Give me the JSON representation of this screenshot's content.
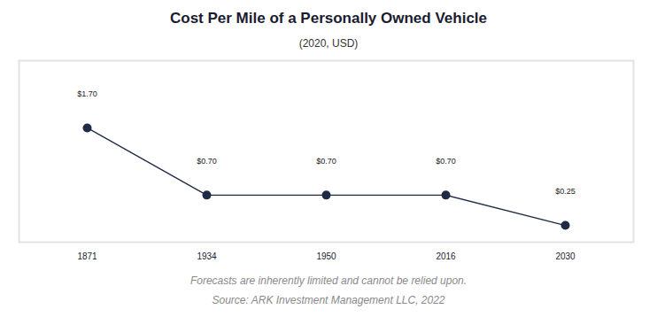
{
  "chart_data": {
    "type": "line",
    "title": "Cost Per Mile of a Personally Owned Vehicle",
    "subtitle": "(2020, USD)",
    "categories": [
      "1871",
      "1934",
      "1950",
      "2016",
      "2030"
    ],
    "values": [
      1.7,
      0.7,
      0.7,
      0.7,
      0.25
    ],
    "value_labels": [
      "$1.70",
      "$0.70",
      "$0.70",
      "$0.70",
      "$0.25"
    ],
    "data_labels": true,
    "ylim": [
      0,
      2.7
    ],
    "tick_labels": "x",
    "color": "#1f2a44",
    "marker": "circle",
    "caption": "Forecasts are inherently limited and cannot be relied upon.",
    "source": "Source: ARK Investment Management LLC, 2022"
  }
}
